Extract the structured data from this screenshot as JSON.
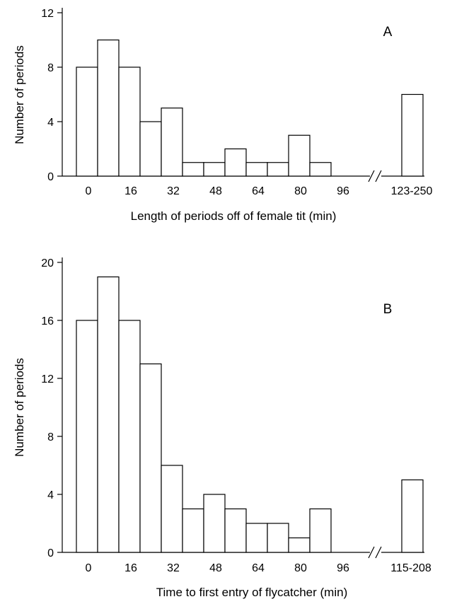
{
  "chart_data": [
    {
      "type": "bar",
      "panel": "A",
      "xlabel": "Length of periods off of female tit (min)",
      "ylabel": "Number of periods",
      "ylim": [
        0,
        12
      ],
      "yticks": [
        "0",
        "4",
        "8",
        "12"
      ],
      "xticks": [
        "0",
        "16",
        "32",
        "48",
        "64",
        "80",
        "96"
      ],
      "break_label": "123-250",
      "bin_width": 8,
      "bins": [
        {
          "x": 0,
          "value": 8
        },
        {
          "x": 8,
          "value": 10
        },
        {
          "x": 16,
          "value": 8
        },
        {
          "x": 24,
          "value": 4
        },
        {
          "x": 32,
          "value": 5
        },
        {
          "x": 40,
          "value": 1
        },
        {
          "x": 48,
          "value": 1
        },
        {
          "x": 56,
          "value": 2
        },
        {
          "x": 64,
          "value": 1
        },
        {
          "x": 72,
          "value": 1
        },
        {
          "x": 80,
          "value": 3
        },
        {
          "x": 88,
          "value": 1
        }
      ],
      "break_bin": {
        "label": "123-250",
        "value": 6
      },
      "grid": false
    },
    {
      "type": "bar",
      "panel": "B",
      "xlabel": "Time to first entry of flycatcher (min)",
      "ylabel": "Number of periods",
      "ylim": [
        0,
        20
      ],
      "yticks": [
        "0",
        "4",
        "8",
        "12",
        "16",
        "20"
      ],
      "xticks": [
        "0",
        "16",
        "32",
        "48",
        "64",
        "80",
        "96"
      ],
      "break_label": "115-208",
      "bin_width": 8,
      "bins": [
        {
          "x": 0,
          "value": 16
        },
        {
          "x": 8,
          "value": 19
        },
        {
          "x": 16,
          "value": 16
        },
        {
          "x": 24,
          "value": 13
        },
        {
          "x": 32,
          "value": 6
        },
        {
          "x": 40,
          "value": 3
        },
        {
          "x": 48,
          "value": 4
        },
        {
          "x": 56,
          "value": 3
        },
        {
          "x": 64,
          "value": 2
        },
        {
          "x": 72,
          "value": 2
        },
        {
          "x": 80,
          "value": 1
        },
        {
          "x": 88,
          "value": 3
        }
      ],
      "break_bin": {
        "label": "115-208",
        "value": 5
      },
      "grid": false
    }
  ]
}
